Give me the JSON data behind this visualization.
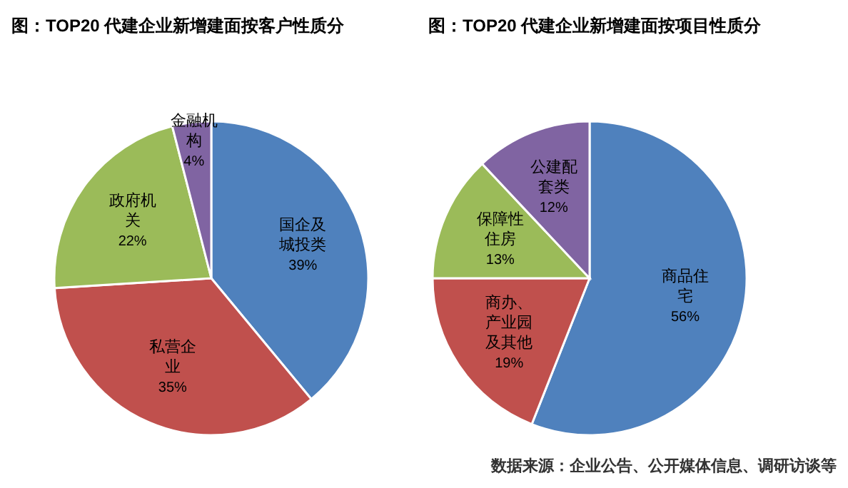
{
  "chart_data": [
    {
      "type": "pie",
      "title": "图：TOP20 代建企业新增建面按客户性质分",
      "categories": [
        "国企及城投类",
        "私营企业",
        "政府机关",
        "金融机构"
      ],
      "values": [
        39,
        35,
        22,
        4
      ],
      "value_labels": [
        "39%",
        "35%",
        "22%",
        "4%"
      ],
      "colors": [
        "#4f81bd",
        "#c0504d",
        "#9bbb59",
        "#8064a2"
      ]
    },
    {
      "type": "pie",
      "title": "图：TOP20 代建企业新增建面按项目性质分",
      "categories": [
        "商品住宅",
        "商办、产业园及其他",
        "保障性住房",
        "公建配套类"
      ],
      "values": [
        56,
        19,
        13,
        12
      ],
      "value_labels": [
        "56%",
        "19%",
        "13%",
        "12%"
      ],
      "colors": [
        "#4f81bd",
        "#c0504d",
        "#9bbb59",
        "#8064a2"
      ],
      "annotations": [
        "数据来源：企业公告、公开媒体信息、调研访谈等"
      ]
    }
  ]
}
